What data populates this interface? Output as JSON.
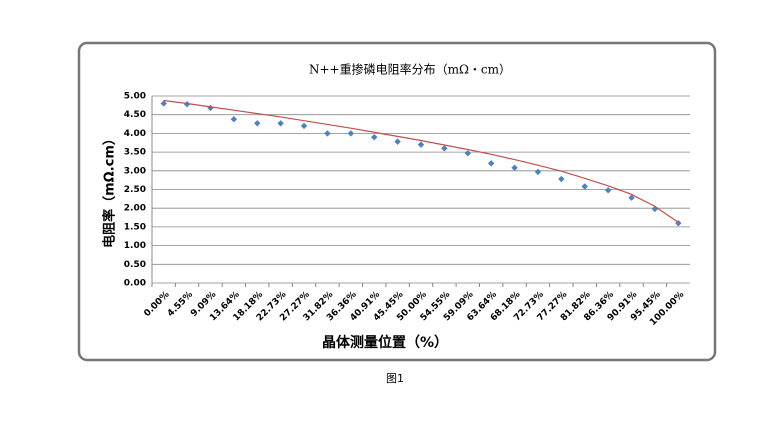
{
  "chart_data": {
    "type": "scatter",
    "title": "N++重掺磷电阻率分布（mΩ・cm）",
    "x_label": "晶体测量位置（%）",
    "y_label": "电阻率（mΩ.cm）",
    "caption": "图1",
    "categories": [
      "0.00%",
      "4.55%",
      "9.09%",
      "13.64%",
      "18.18%",
      "22.73%",
      "27.27%",
      "31.82%",
      "36.36%",
      "40.91%",
      "45.45%",
      "50.00%",
      "54.55%",
      "59.09%",
      "63.64%",
      "68.18%",
      "72.73%",
      "77.27%",
      "81.82%",
      "86.36%",
      "90.91%",
      "95.45%",
      "100.00%"
    ],
    "series": [
      {
        "mode": "markers",
        "color": "#4f81bd",
        "values": [
          4.8,
          4.78,
          4.68,
          4.38,
          4.27,
          4.27,
          4.2,
          4.0,
          4.0,
          3.9,
          3.78,
          3.7,
          3.6,
          3.47,
          3.2,
          3.08,
          2.97,
          2.78,
          2.58,
          2.48,
          2.28,
          1.98,
          1.6
        ]
      },
      {
        "mode": "line",
        "color": "#c0504d",
        "values": [
          4.88,
          4.8,
          4.71,
          4.62,
          4.53,
          4.44,
          4.34,
          4.24,
          4.14,
          4.03,
          3.92,
          3.81,
          3.69,
          3.57,
          3.44,
          3.3,
          3.15,
          2.99,
          2.8,
          2.6,
          2.37,
          2.05,
          1.62
        ]
      }
    ],
    "ylim": [
      0,
      5
    ],
    "yticks": [
      {
        "value": 0,
        "label": "0.00"
      },
      {
        "value": 0.5,
        "label": "0.50"
      },
      {
        "value": 1,
        "label": "1.00"
      },
      {
        "value": 1.5,
        "label": "1.50"
      },
      {
        "value": 2,
        "label": "2.00"
      },
      {
        "value": 2.5,
        "label": "2.50"
      },
      {
        "value": 3,
        "label": "3.00"
      },
      {
        "value": 3.5,
        "label": "3.50"
      },
      {
        "value": 4,
        "label": "4.00"
      },
      {
        "value": 4.5,
        "label": "4.50"
      },
      {
        "value": 5,
        "label": "5.00"
      }
    ],
    "grid": true
  }
}
